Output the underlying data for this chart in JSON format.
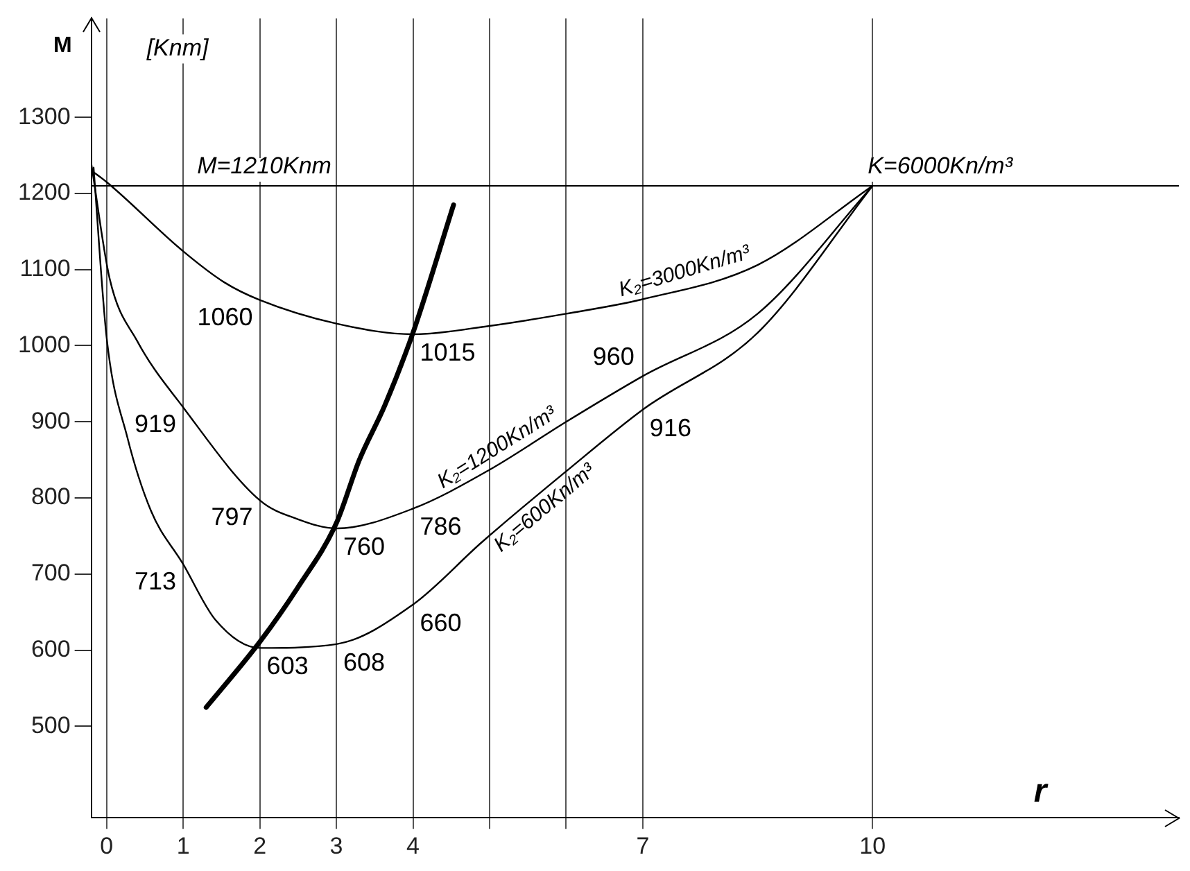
{
  "chart_data": {
    "type": "line",
    "xlabel": "r",
    "ylabel": "M",
    "xlim": [
      -0.2,
      14
    ],
    "xticks": [
      0,
      1,
      2,
      3,
      4,
      {
        "value": 5,
        "label": null
      },
      {
        "value": 6,
        "label": null
      },
      7,
      10
    ],
    "ylim": [
      380,
      1430
    ],
    "yticks": [
      500,
      600,
      700,
      800,
      900,
      1000,
      1100,
      1200,
      1300
    ],
    "grid": "x",
    "legend": false,
    "marker": "none",
    "line_style": "solid",
    "series": [
      {
        "name": "K₂=3000Kn/m³",
        "color": "#000000",
        "x": [
          -0.2,
          0,
          1,
          1.54,
          2,
          3,
          4,
          5,
          6,
          7,
          8.5,
          10
        ],
        "values": [
          1230,
          1215,
          1124,
          1083,
          1060,
          1029,
          1015,
          1026,
          1042,
          1061,
          1106,
          1210
        ]
      },
      {
        "name": "K₂=1200Kn/m³",
        "color": "#000000",
        "x": [
          -0.2,
          0.04,
          0.4,
          1,
          2,
          2.5,
          3,
          4,
          5,
          6,
          7,
          8.5,
          10
        ],
        "values": [
          1239,
          1088,
          1006,
          919,
          797,
          772,
          760,
          786,
          837,
          900,
          960,
          1042,
          1210
        ]
      },
      {
        "name": "K₂=600Kn/m³",
        "color": "#000000",
        "x": [
          -0.17,
          0,
          0.27,
          0.58,
          1,
          1.42,
          2,
          3,
          4,
          4.9,
          6,
          7,
          8.5,
          10
        ],
        "values": [
          1234,
          1011,
          880,
          783,
          713,
          640,
          603,
          608,
          660,
          742,
          835,
          916,
          1017,
          1210
        ]
      },
      {
        "color": "#000000",
        "x": [
          1.3,
          2,
          2.5,
          3,
          3.3,
          3.63,
          4,
          4.53
        ],
        "values": [
          525,
          611,
          683,
          767,
          850,
          921,
          1017,
          1185
        ]
      }
    ],
    "ref_lines": [
      {
        "axis": "y",
        "value": 1210,
        "label": "M=1210Knm",
        "color": "#000000"
      }
    ],
    "annotations": [
      "[Knm]",
      {
        "text": "1060",
        "x": 2,
        "y": 1060
      },
      {
        "text": "1015",
        "x": 4,
        "y": 1015
      },
      {
        "text": "919",
        "x": 1,
        "y": 919
      },
      {
        "text": "797",
        "x": 2,
        "y": 797
      },
      {
        "text": "760",
        "x": 3,
        "y": 760
      },
      {
        "text": "786",
        "x": 4,
        "y": 786
      },
      {
        "text": "713",
        "x": 1,
        "y": 713
      },
      {
        "text": "603",
        "x": 2,
        "y": 603
      },
      {
        "text": "608",
        "x": 3,
        "y": 608
      },
      {
        "text": "660",
        "x": 4,
        "y": 660
      },
      {
        "text": "960",
        "x": 7,
        "y": 960
      },
      {
        "text": "916",
        "x": 7,
        "y": 916
      },
      "K=6000Kn/m³"
    ]
  }
}
